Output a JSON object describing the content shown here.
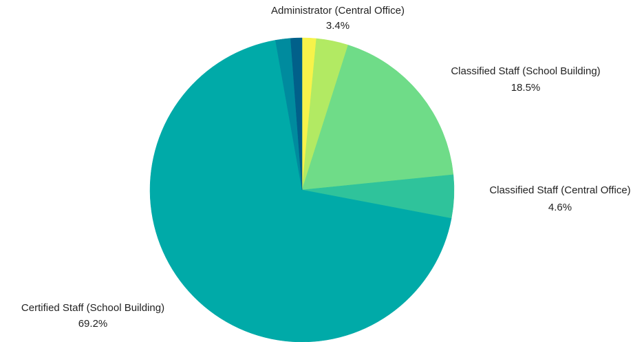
{
  "chart_data": {
    "type": "pie",
    "title": "",
    "start_angle_deg": 0,
    "direction": "clockwise",
    "slices": [
      {
        "label": "",
        "value": 1.5,
        "color": "#f7f34a",
        "show_label": false
      },
      {
        "label": "Administrator (Central Office)",
        "value": 3.4,
        "display": "3.4%",
        "color": "#b2ea63",
        "show_label": true
      },
      {
        "label": "Classified Staff (School Building)",
        "value": 18.5,
        "display": "18.5%",
        "color": "#6fdc88",
        "show_label": true
      },
      {
        "label": "Classified Staff (Central Office)",
        "value": 4.6,
        "display": "4.6%",
        "color": "#2fc39b",
        "show_label": true
      },
      {
        "label": "Certified Staff (School Building)",
        "value": 69.2,
        "display": "69.2%",
        "color": "#00aaa8",
        "show_label": true
      },
      {
        "label": "",
        "value": 1.6,
        "color": "#008b9e",
        "show_label": false
      },
      {
        "label": "",
        "value": 1.2,
        "color": "#01608a",
        "show_label": false
      }
    ]
  }
}
